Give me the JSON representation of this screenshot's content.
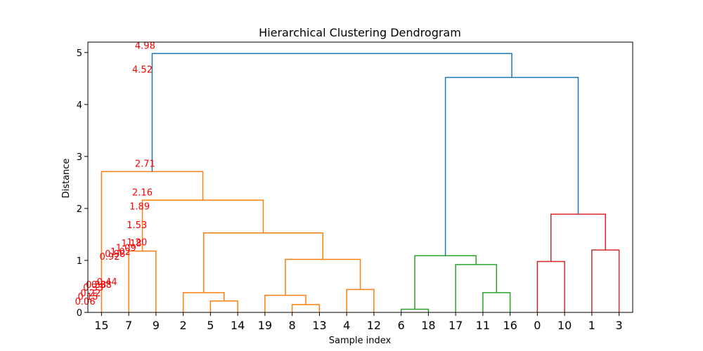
{
  "chart_data": {
    "type": "dendrogram",
    "title": "Hierarchical Clustering Dendrogram",
    "xlabel": "Sample index",
    "ylabel": "Distance",
    "ylim": [
      0,
      5.2
    ],
    "yticks": [
      0,
      1,
      2,
      3,
      4,
      5
    ],
    "leaves": [
      "15",
      "7",
      "9",
      "2",
      "5",
      "14",
      "19",
      "8",
      "13",
      "4",
      "12",
      "6",
      "18",
      "17",
      "11",
      "16",
      "0",
      "10",
      "1",
      "3"
    ],
    "colors": {
      "above_threshold": "#1f77b4",
      "cluster_1": "#ff7f0e",
      "cluster_2": "#2ca02c",
      "cluster_3": "#d62728",
      "annotation": "#ff0000"
    },
    "merges": [
      {
        "left": "leaf:5",
        "right": "leaf:14",
        "height": 0.22,
        "color": "cluster_1"
      },
      {
        "left": "leaf:2",
        "right": "m0",
        "height": 0.38,
        "color": "cluster_1"
      },
      {
        "left": "leaf:8",
        "right": "leaf:13",
        "height": 0.15,
        "color": "cluster_1"
      },
      {
        "left": "leaf:19",
        "right": "m2",
        "height": 0.33,
        "color": "cluster_1"
      },
      {
        "left": "leaf:4",
        "right": "leaf:12",
        "height": 0.44,
        "color": "cluster_1"
      },
      {
        "left": "m3",
        "right": "m4",
        "height": 1.02,
        "color": "cluster_1"
      },
      {
        "left": "m1",
        "right": "m5",
        "height": 1.53,
        "color": "cluster_1"
      },
      {
        "left": "leaf:7",
        "right": "leaf:9",
        "height": 1.18,
        "color": "cluster_1"
      },
      {
        "left": "m7",
        "right": "m6",
        "height": 2.16,
        "color": "cluster_1"
      },
      {
        "left": "leaf:15",
        "right": "m8",
        "height": 2.71,
        "color": "cluster_1"
      },
      {
        "left": "leaf:6",
        "right": "leaf:18",
        "height": 0.06,
        "color": "cluster_2"
      },
      {
        "left": "leaf:11",
        "right": "leaf:16",
        "height": 0.38,
        "color": "cluster_2"
      },
      {
        "left": "leaf:17",
        "right": "m11",
        "height": 0.92,
        "color": "cluster_2"
      },
      {
        "left": "m10",
        "right": "m12",
        "height": 1.09,
        "color": "cluster_2"
      },
      {
        "left": "leaf:0",
        "right": "leaf:10",
        "height": 0.98,
        "color": "cluster_3"
      },
      {
        "left": "leaf:1",
        "right": "leaf:3",
        "height": 1.2,
        "color": "cluster_3"
      },
      {
        "left": "m14",
        "right": "m15",
        "height": 1.89,
        "color": "cluster_3"
      },
      {
        "left": "m13",
        "right": "m16",
        "height": 4.52,
        "color": "above_threshold"
      },
      {
        "left": "m9",
        "right": "m17",
        "height": 4.98,
        "color": "above_threshold"
      }
    ],
    "annotations": [
      {
        "text": "4.98",
        "x": 1.6,
        "y": 5.07
      },
      {
        "text": "4.52",
        "x": 1.5,
        "y": 4.61
      },
      {
        "text": "2.71",
        "x": 1.6,
        "y": 2.8
      },
      {
        "text": "2.16",
        "x": 1.5,
        "y": 2.25
      },
      {
        "text": "1.89",
        "x": 1.4,
        "y": 1.98
      },
      {
        "text": "1.53",
        "x": 1.3,
        "y": 1.62
      },
      {
        "text": "1.20",
        "x": 1.3,
        "y": 1.29
      },
      {
        "text": "1.18",
        "x": 1.1,
        "y": 1.27
      },
      {
        "text": "1.09",
        "x": 0.9,
        "y": 1.18
      },
      {
        "text": "1.02",
        "x": 0.7,
        "y": 1.11
      },
      {
        "text": "0.98",
        "x": 0.5,
        "y": 1.07
      },
      {
        "text": "0.92",
        "x": 0.3,
        "y": 1.01
      },
      {
        "text": "0.44",
        "x": 0.2,
        "y": 0.53
      },
      {
        "text": "0.38",
        "x": 0.0,
        "y": 0.47
      },
      {
        "text": "0.38",
        "x": -0.2,
        "y": 0.47
      },
      {
        "text": "0.33",
        "x": -0.3,
        "y": 0.42
      },
      {
        "text": "0.22",
        "x": -0.4,
        "y": 0.31
      },
      {
        "text": "0.15",
        "x": -0.5,
        "y": 0.24
      },
      {
        "text": "0.06",
        "x": -0.6,
        "y": 0.15
      }
    ]
  }
}
